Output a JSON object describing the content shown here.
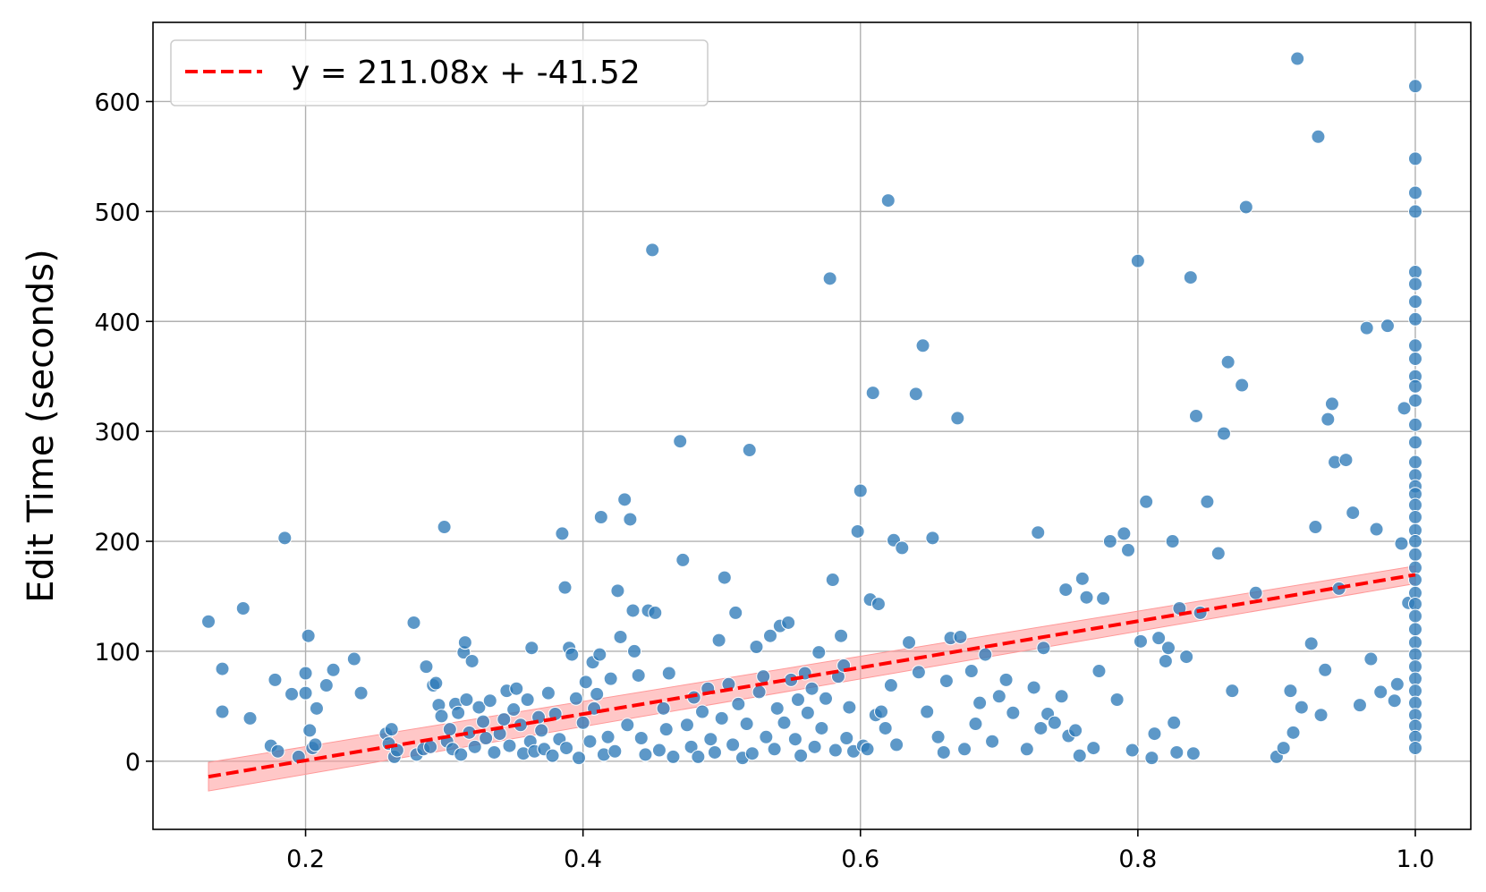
{
  "colors": {
    "points": "#2f7bb8",
    "point_edge": "#ffffff",
    "fit_line": "#ff0000",
    "confidence_band": "#ff9999",
    "grid": "#b0b0b0",
    "axis": "#000000"
  },
  "chart_data": {
    "type": "scatter",
    "title": "",
    "xlabel": "",
    "ylabel": "Edit Time (seconds)",
    "xlim": [
      0.09,
      1.04
    ],
    "ylim": [
      -62,
      672
    ],
    "grid": true,
    "legend_position": "top-left",
    "x_ticks": [
      0.2,
      0.4,
      0.6,
      0.8,
      1.0
    ],
    "x_tick_labels": [
      "0.2",
      "0.4",
      "0.6",
      "0.8",
      "1.0"
    ],
    "y_ticks": [
      0,
      100,
      200,
      300,
      400,
      500,
      600
    ],
    "y_tick_labels": [
      "0",
      "100",
      "200",
      "300",
      "400",
      "500",
      "600"
    ],
    "regression": {
      "label": "y = 211.08x + -41.52",
      "slope": 211.08,
      "intercept": -41.52,
      "x_range": [
        0.13,
        1.0
      ],
      "band_halfwidth_low": 13,
      "band_halfwidth_high": 8,
      "style": "dashed"
    },
    "series": [
      {
        "points": [
          [
            0.13,
            127
          ],
          [
            0.14,
            84
          ],
          [
            0.14,
            45
          ],
          [
            0.155,
            139
          ],
          [
            0.16,
            39
          ],
          [
            0.175,
            14
          ],
          [
            0.178,
            74
          ],
          [
            0.18,
            9
          ],
          [
            0.185,
            203
          ],
          [
            0.19,
            61
          ],
          [
            0.195,
            4
          ],
          [
            0.2,
            80
          ],
          [
            0.2,
            62
          ],
          [
            0.202,
            114
          ],
          [
            0.203,
            28
          ],
          [
            0.205,
            12
          ],
          [
            0.207,
            15
          ],
          [
            0.208,
            48
          ],
          [
            0.215,
            69
          ],
          [
            0.22,
            83
          ],
          [
            0.235,
            93
          ],
          [
            0.24,
            62
          ],
          [
            0.258,
            25
          ],
          [
            0.26,
            16
          ],
          [
            0.262,
            29
          ],
          [
            0.264,
            4
          ],
          [
            0.266,
            10
          ],
          [
            0.278,
            126
          ],
          [
            0.28,
            6
          ],
          [
            0.285,
            11
          ],
          [
            0.287,
            86
          ],
          [
            0.29,
            13
          ],
          [
            0.292,
            69
          ],
          [
            0.294,
            71
          ],
          [
            0.296,
            51
          ],
          [
            0.298,
            41
          ],
          [
            0.3,
            213
          ],
          [
            0.302,
            18
          ],
          [
            0.304,
            29
          ],
          [
            0.306,
            11
          ],
          [
            0.308,
            52
          ],
          [
            0.31,
            44
          ],
          [
            0.312,
            6
          ],
          [
            0.314,
            99
          ],
          [
            0.315,
            108
          ],
          [
            0.316,
            56
          ],
          [
            0.318,
            26
          ],
          [
            0.32,
            91
          ],
          [
            0.322,
            13
          ],
          [
            0.325,
            49
          ],
          [
            0.328,
            36
          ],
          [
            0.33,
            21
          ],
          [
            0.333,
            55
          ],
          [
            0.336,
            8
          ],
          [
            0.34,
            25
          ],
          [
            0.343,
            38
          ],
          [
            0.345,
            64
          ],
          [
            0.347,
            14
          ],
          [
            0.35,
            47
          ],
          [
            0.352,
            66
          ],
          [
            0.355,
            33
          ],
          [
            0.357,
            7
          ],
          [
            0.36,
            56
          ],
          [
            0.362,
            18
          ],
          [
            0.363,
            103
          ],
          [
            0.365,
            9
          ],
          [
            0.368,
            40
          ],
          [
            0.37,
            28
          ],
          [
            0.372,
            11
          ],
          [
            0.375,
            62
          ],
          [
            0.378,
            5
          ],
          [
            0.38,
            43
          ],
          [
            0.383,
            20
          ],
          [
            0.385,
            207
          ],
          [
            0.387,
            158
          ],
          [
            0.388,
            12
          ],
          [
            0.39,
            103
          ],
          [
            0.392,
            97
          ],
          [
            0.395,
            57
          ],
          [
            0.397,
            3
          ],
          [
            0.4,
            35
          ],
          [
            0.402,
            72
          ],
          [
            0.405,
            18
          ],
          [
            0.407,
            90
          ],
          [
            0.408,
            48
          ],
          [
            0.41,
            61
          ],
          [
            0.412,
            97
          ],
          [
            0.413,
            222
          ],
          [
            0.415,
            6
          ],
          [
            0.418,
            22
          ],
          [
            0.42,
            75
          ],
          [
            0.423,
            9
          ],
          [
            0.425,
            155
          ],
          [
            0.427,
            113
          ],
          [
            0.43,
            238
          ],
          [
            0.432,
            33
          ],
          [
            0.434,
            220
          ],
          [
            0.436,
            137
          ],
          [
            0.437,
            100
          ],
          [
            0.44,
            78
          ],
          [
            0.442,
            21
          ],
          [
            0.445,
            6
          ],
          [
            0.447,
            137
          ],
          [
            0.45,
            465
          ],
          [
            0.452,
            135
          ],
          [
            0.455,
            10
          ],
          [
            0.458,
            48
          ],
          [
            0.46,
            29
          ],
          [
            0.462,
            80
          ],
          [
            0.465,
            4
          ],
          [
            0.47,
            291
          ],
          [
            0.472,
            183
          ],
          [
            0.475,
            33
          ],
          [
            0.478,
            13
          ],
          [
            0.48,
            58
          ],
          [
            0.483,
            4
          ],
          [
            0.486,
            45
          ],
          [
            0.49,
            66
          ],
          [
            0.492,
            20
          ],
          [
            0.495,
            8
          ],
          [
            0.498,
            110
          ],
          [
            0.5,
            39
          ],
          [
            0.502,
            167
          ],
          [
            0.505,
            70
          ],
          [
            0.508,
            15
          ],
          [
            0.51,
            135
          ],
          [
            0.512,
            52
          ],
          [
            0.515,
            3
          ],
          [
            0.518,
            34
          ],
          [
            0.52,
            283
          ],
          [
            0.522,
            7
          ],
          [
            0.525,
            104
          ],
          [
            0.527,
            63
          ],
          [
            0.53,
            77
          ],
          [
            0.532,
            22
          ],
          [
            0.535,
            114
          ],
          [
            0.538,
            11
          ],
          [
            0.54,
            48
          ],
          [
            0.542,
            123
          ],
          [
            0.545,
            35
          ],
          [
            0.548,
            126
          ],
          [
            0.55,
            74
          ],
          [
            0.553,
            20
          ],
          [
            0.555,
            56
          ],
          [
            0.557,
            5
          ],
          [
            0.56,
            80
          ],
          [
            0.562,
            44
          ],
          [
            0.565,
            66
          ],
          [
            0.567,
            13
          ],
          [
            0.57,
            99
          ],
          [
            0.572,
            30
          ],
          [
            0.575,
            57
          ],
          [
            0.578,
            439
          ],
          [
            0.58,
            165
          ],
          [
            0.582,
            10
          ],
          [
            0.584,
            77
          ],
          [
            0.586,
            114
          ],
          [
            0.588,
            87
          ],
          [
            0.59,
            21
          ],
          [
            0.592,
            49
          ],
          [
            0.595,
            9
          ],
          [
            0.598,
            209
          ],
          [
            0.6,
            246
          ],
          [
            0.602,
            14
          ],
          [
            0.605,
            11
          ],
          [
            0.607,
            147
          ],
          [
            0.609,
            335
          ],
          [
            0.611,
            42
          ],
          [
            0.613,
            143
          ],
          [
            0.615,
            45
          ],
          [
            0.618,
            30
          ],
          [
            0.62,
            510
          ],
          [
            0.622,
            69
          ],
          [
            0.624,
            201
          ],
          [
            0.626,
            15
          ],
          [
            0.63,
            194
          ],
          [
            0.635,
            108
          ],
          [
            0.64,
            334
          ],
          [
            0.642,
            81
          ],
          [
            0.645,
            378
          ],
          [
            0.648,
            45
          ],
          [
            0.652,
            203
          ],
          [
            0.656,
            22
          ],
          [
            0.66,
            8
          ],
          [
            0.662,
            73
          ],
          [
            0.665,
            112
          ],
          [
            0.67,
            312
          ],
          [
            0.672,
            113
          ],
          [
            0.675,
            11
          ],
          [
            0.68,
            82
          ],
          [
            0.683,
            34
          ],
          [
            0.686,
            53
          ],
          [
            0.69,
            97
          ],
          [
            0.695,
            18
          ],
          [
            0.7,
            59
          ],
          [
            0.705,
            74
          ],
          [
            0.71,
            44
          ],
          [
            0.72,
            11
          ],
          [
            0.725,
            67
          ],
          [
            0.728,
            208
          ],
          [
            0.73,
            30
          ],
          [
            0.732,
            103
          ],
          [
            0.735,
            43
          ],
          [
            0.74,
            35
          ],
          [
            0.745,
            59
          ],
          [
            0.748,
            156
          ],
          [
            0.75,
            23
          ],
          [
            0.755,
            28
          ],
          [
            0.758,
            5
          ],
          [
            0.76,
            166
          ],
          [
            0.763,
            149
          ],
          [
            0.768,
            12
          ],
          [
            0.772,
            82
          ],
          [
            0.775,
            148
          ],
          [
            0.78,
            200
          ],
          [
            0.785,
            56
          ],
          [
            0.79,
            207
          ],
          [
            0.793,
            192
          ],
          [
            0.796,
            10
          ],
          [
            0.8,
            455
          ],
          [
            0.802,
            109
          ],
          [
            0.806,
            236
          ],
          [
            0.81,
            3
          ],
          [
            0.812,
            25
          ],
          [
            0.815,
            112
          ],
          [
            0.82,
            91
          ],
          [
            0.822,
            103
          ],
          [
            0.825,
            200
          ],
          [
            0.826,
            35
          ],
          [
            0.828,
            8
          ],
          [
            0.83,
            139
          ],
          [
            0.835,
            95
          ],
          [
            0.838,
            440
          ],
          [
            0.84,
            7
          ],
          [
            0.842,
            314
          ],
          [
            0.845,
            135
          ],
          [
            0.85,
            236
          ],
          [
            0.858,
            189
          ],
          [
            0.862,
            298
          ],
          [
            0.865,
            363
          ],
          [
            0.868,
            64
          ],
          [
            0.875,
            342
          ],
          [
            0.878,
            504
          ],
          [
            0.885,
            153
          ],
          [
            0.9,
            4
          ],
          [
            0.905,
            12
          ],
          [
            0.91,
            64
          ],
          [
            0.912,
            26
          ],
          [
            0.915,
            639
          ],
          [
            0.918,
            49
          ],
          [
            0.925,
            107
          ],
          [
            0.928,
            213
          ],
          [
            0.93,
            568
          ],
          [
            0.932,
            42
          ],
          [
            0.935,
            83
          ],
          [
            0.937,
            311
          ],
          [
            0.94,
            325
          ],
          [
            0.942,
            272
          ],
          [
            0.945,
            157
          ],
          [
            0.95,
            274
          ],
          [
            0.955,
            226
          ],
          [
            0.96,
            51
          ],
          [
            0.965,
            394
          ],
          [
            0.968,
            93
          ],
          [
            0.972,
            211
          ],
          [
            0.975,
            63
          ],
          [
            0.98,
            396
          ],
          [
            0.985,
            55
          ],
          [
            0.987,
            70
          ],
          [
            0.99,
            198
          ],
          [
            0.992,
            321
          ],
          [
            0.995,
            144
          ],
          [
            1.0,
            614
          ],
          [
            1.0,
            548
          ],
          [
            1.0,
            517
          ],
          [
            1.0,
            500
          ],
          [
            1.0,
            445
          ],
          [
            1.0,
            434
          ],
          [
            1.0,
            418
          ],
          [
            1.0,
            402
          ],
          [
            1.0,
            378
          ],
          [
            1.0,
            366
          ],
          [
            1.0,
            350
          ],
          [
            1.0,
            341
          ],
          [
            1.0,
            328
          ],
          [
            1.0,
            306
          ],
          [
            1.0,
            290
          ],
          [
            1.0,
            272
          ],
          [
            1.0,
            260
          ],
          [
            1.0,
            250
          ],
          [
            1.0,
            243
          ],
          [
            1.0,
            233
          ],
          [
            1.0,
            222
          ],
          [
            1.0,
            210
          ],
          [
            1.0,
            200
          ],
          [
            1.0,
            188
          ],
          [
            1.0,
            176
          ],
          [
            1.0,
            165
          ],
          [
            1.0,
            153
          ],
          [
            1.0,
            143
          ],
          [
            1.0,
            132
          ],
          [
            1.0,
            120
          ],
          [
            1.0,
            108
          ],
          [
            1.0,
            97
          ],
          [
            1.0,
            86
          ],
          [
            1.0,
            75
          ],
          [
            1.0,
            64
          ],
          [
            1.0,
            53
          ],
          [
            1.0,
            42
          ],
          [
            1.0,
            32
          ],
          [
            1.0,
            22
          ],
          [
            1.0,
            12
          ]
        ]
      }
    ]
  }
}
